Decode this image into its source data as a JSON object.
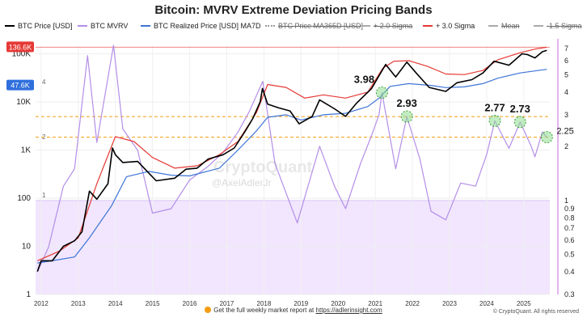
{
  "title": "Bitcoin: MVRV Extreme Deviation Pricing Bands",
  "legend": [
    {
      "label": "BTC Price [USD]",
      "color": "#000000",
      "style": "solid",
      "strike": false
    },
    {
      "label": "BTC MVRV",
      "color": "#b48ee8",
      "style": "solid",
      "strike": false
    },
    {
      "label": "BTC Realized Price [USD] MA7D",
      "color": "#3d74d6",
      "style": "solid",
      "strike": false
    },
    {
      "label": "BTC Price MA365D [USD]",
      "color": "#999999",
      "style": "dotted",
      "strike": true
    },
    {
      "label": "+ 2.0 Sigma",
      "color": "#aaaaaa",
      "style": "solid",
      "strike": true
    },
    {
      "label": "+ 3.0 Sigma",
      "color": "#e53935",
      "style": "solid",
      "strike": false
    },
    {
      "label": "Mean",
      "color": "#aaaaaa",
      "style": "solid",
      "strike": true
    },
    {
      "label": "-1.5 Sigma",
      "color": "#aaaaaa",
      "style": "solid",
      "strike": true
    }
  ],
  "badges": {
    "price": {
      "text": "136.6K",
      "color": "#e53935"
    },
    "realized": {
      "text": "47.6K",
      "color": "#2f6fdd"
    }
  },
  "watermark": {
    "brand": "CryptoQuant",
    "handle": "@AxelAdlerJr"
  },
  "footer": {
    "prefix": "Get the full weekly market report at",
    "link": "https://adlerinsight.com",
    "credit": "© CryptoQuant. All rights reserved"
  },
  "chart_data": {
    "type": "line",
    "title": "Bitcoin: MVRV Extreme Deviation Pricing Bands",
    "left_axis": {
      "scale": "log",
      "ticks": [
        "1",
        "10",
        "100",
        "1K",
        "10K",
        "100K"
      ],
      "range": [
        1,
        150000
      ]
    },
    "right_axis": {
      "scale": "log",
      "ticks": [
        "0.3",
        "0.4",
        "0.5",
        "0.6",
        "0.7",
        "0.8",
        "0.9",
        "1",
        "2",
        "3",
        "4",
        "5",
        "6",
        "7"
      ],
      "range": [
        0.3,
        7.3
      ]
    },
    "x_ticks": [
      "2012",
      "2013",
      "2014",
      "2015",
      "2016",
      "2017",
      "2018",
      "2019",
      "2020",
      "2021",
      "2022",
      "2023",
      "2024",
      "2025"
    ],
    "x_range": [
      2011.85,
      2025.7
    ],
    "series": [
      {
        "name": "BTC Price [USD]",
        "axis": "left",
        "color": "#000000",
        "points": [
          [
            2011.9,
            3
          ],
          [
            2012.0,
            5
          ],
          [
            2012.3,
            5
          ],
          [
            2012.6,
            10
          ],
          [
            2012.9,
            13
          ],
          [
            2013.1,
            20
          ],
          [
            2013.3,
            140
          ],
          [
            2013.5,
            95
          ],
          [
            2013.8,
            200
          ],
          [
            2013.92,
            1100
          ],
          [
            2014.0,
            800
          ],
          [
            2014.2,
            550
          ],
          [
            2014.6,
            580
          ],
          [
            2014.9,
            330
          ],
          [
            2015.1,
            230
          ],
          [
            2015.6,
            260
          ],
          [
            2015.9,
            400
          ],
          [
            2016.2,
            420
          ],
          [
            2016.5,
            650
          ],
          [
            2016.9,
            800
          ],
          [
            2017.2,
            1100
          ],
          [
            2017.5,
            2500
          ],
          [
            2017.7,
            4500
          ],
          [
            2017.9,
            10000
          ],
          [
            2017.96,
            19000
          ],
          [
            2018.1,
            9000
          ],
          [
            2018.4,
            7500
          ],
          [
            2018.7,
            6500
          ],
          [
            2018.95,
            3500
          ],
          [
            2019.3,
            5000
          ],
          [
            2019.5,
            11000
          ],
          [
            2019.9,
            7200
          ],
          [
            2020.2,
            5000
          ],
          [
            2020.5,
            9500
          ],
          [
            2020.9,
            19000
          ],
          [
            2021.1,
            35000
          ],
          [
            2021.28,
            60000
          ],
          [
            2021.55,
            33000
          ],
          [
            2021.85,
            67000
          ],
          [
            2022.1,
            40000
          ],
          [
            2022.45,
            20000
          ],
          [
            2022.9,
            16500
          ],
          [
            2023.2,
            25000
          ],
          [
            2023.6,
            29000
          ],
          [
            2023.9,
            40000
          ],
          [
            2024.2,
            70000
          ],
          [
            2024.6,
            58000
          ],
          [
            2024.95,
            100000
          ],
          [
            2025.1,
            96000
          ],
          [
            2025.3,
            82000
          ],
          [
            2025.5,
            110000
          ],
          [
            2025.62,
            118000
          ]
        ]
      },
      {
        "name": "BTC Realized Price [USD] MA7D",
        "axis": "left",
        "color": "#3d74d6",
        "points": [
          [
            2011.9,
            4.5
          ],
          [
            2012.3,
            5
          ],
          [
            2012.9,
            6
          ],
          [
            2013.3,
            15
          ],
          [
            2013.9,
            70
          ],
          [
            2014.3,
            280
          ],
          [
            2014.9,
            360
          ],
          [
            2015.5,
            300
          ],
          [
            2016.0,
            290
          ],
          [
            2016.8,
            420
          ],
          [
            2017.3,
            1000
          ],
          [
            2017.8,
            2500
          ],
          [
            2018.1,
            4800
          ],
          [
            2018.6,
            5400
          ],
          [
            2019.0,
            4200
          ],
          [
            2019.6,
            5400
          ],
          [
            2020.2,
            5800
          ],
          [
            2020.8,
            8000
          ],
          [
            2021.1,
            12000
          ],
          [
            2021.4,
            21000
          ],
          [
            2021.9,
            24000
          ],
          [
            2022.5,
            22000
          ],
          [
            2022.9,
            19800
          ],
          [
            2023.4,
            20500
          ],
          [
            2023.9,
            24000
          ],
          [
            2024.3,
            31000
          ],
          [
            2024.9,
            40000
          ],
          [
            2025.3,
            44000
          ],
          [
            2025.62,
            47600
          ]
        ]
      },
      {
        "name": "+ 3.0 Sigma",
        "axis": "left",
        "color": "#e53935",
        "points": [
          [
            2011.9,
            5
          ],
          [
            2012.5,
            8
          ],
          [
            2013.0,
            15
          ],
          [
            2013.5,
            200
          ],
          [
            2014.0,
            1900
          ],
          [
            2014.5,
            1500
          ],
          [
            2015.0,
            700
          ],
          [
            2015.6,
            420
          ],
          [
            2016.2,
            470
          ],
          [
            2016.8,
            800
          ],
          [
            2017.3,
            1500
          ],
          [
            2017.8,
            6000
          ],
          [
            2018.1,
            23000
          ],
          [
            2018.6,
            20000
          ],
          [
            2019.1,
            12000
          ],
          [
            2019.6,
            14000
          ],
          [
            2020.2,
            12000
          ],
          [
            2020.8,
            16000
          ],
          [
            2021.2,
            50000
          ],
          [
            2021.5,
            70000
          ],
          [
            2021.9,
            72000
          ],
          [
            2022.4,
            55000
          ],
          [
            2022.9,
            38000
          ],
          [
            2023.4,
            37000
          ],
          [
            2023.9,
            45000
          ],
          [
            2024.3,
            75000
          ],
          [
            2024.9,
            105000
          ],
          [
            2025.3,
            125000
          ],
          [
            2025.62,
            136600
          ]
        ]
      },
      {
        "name": "BTC MVRV",
        "axis": "right",
        "color": "#b48ee8",
        "points": [
          [
            2011.9,
            0.4
          ],
          [
            2012.2,
            0.55
          ],
          [
            2012.6,
            1.2
          ],
          [
            2012.9,
            1.5
          ],
          [
            2013.25,
            6.4
          ],
          [
            2013.5,
            2.1
          ],
          [
            2013.95,
            7.3
          ],
          [
            2014.2,
            2.5
          ],
          [
            2014.6,
            1.9
          ],
          [
            2015.0,
            0.85
          ],
          [
            2015.5,
            0.9
          ],
          [
            2016.0,
            1.3
          ],
          [
            2016.5,
            1.55
          ],
          [
            2016.9,
            1.85
          ],
          [
            2017.3,
            2.4
          ],
          [
            2017.6,
            3.1
          ],
          [
            2017.97,
            4.6
          ],
          [
            2018.3,
            1.6
          ],
          [
            2018.9,
            0.75
          ],
          [
            2019.5,
            2.0
          ],
          [
            2019.9,
            1.2
          ],
          [
            2020.2,
            0.9
          ],
          [
            2020.6,
            1.6
          ],
          [
            2020.9,
            2.3
          ],
          [
            2021.1,
            3.0
          ],
          [
            2021.18,
            3.98
          ],
          [
            2021.55,
            1.5
          ],
          [
            2021.85,
            2.93
          ],
          [
            2022.2,
            1.7
          ],
          [
            2022.5,
            0.87
          ],
          [
            2022.9,
            0.78
          ],
          [
            2023.3,
            1.25
          ],
          [
            2023.7,
            1.2
          ],
          [
            2024.0,
            1.8
          ],
          [
            2024.22,
            2.77
          ],
          [
            2024.6,
            1.95
          ],
          [
            2024.9,
            2.73
          ],
          [
            2025.2,
            2.0
          ],
          [
            2025.3,
            1.75
          ],
          [
            2025.5,
            2.4
          ],
          [
            2025.62,
            2.25
          ]
        ]
      }
    ],
    "hlines": [
      {
        "axis": "right",
        "value": 2.93,
        "color": "#f39c12",
        "style": "dashed"
      },
      {
        "axis": "right",
        "value": 2.25,
        "color": "#f39c12",
        "style": "dashed"
      },
      {
        "axis": "left",
        "value": 136600,
        "color": "#e53935",
        "style": "solid"
      }
    ],
    "shaded_region": {
      "axis": "right",
      "from": 0.3,
      "to": 1,
      "color": "#f1e6fd"
    },
    "annotations": [
      {
        "text": "3.98",
        "x": 2021.18,
        "y": 3.98
      },
      {
        "text": "2.93",
        "x": 2021.85,
        "y": 2.93
      },
      {
        "text": "2.77",
        "x": 2024.22,
        "y": 2.77
      },
      {
        "text": "2.73",
        "x": 2024.9,
        "y": 2.73
      },
      {
        "text": "2.25",
        "x": 2025.62,
        "y": 2.25
      }
    ],
    "left_band_labels": [
      "4",
      "2",
      "1"
    ]
  }
}
